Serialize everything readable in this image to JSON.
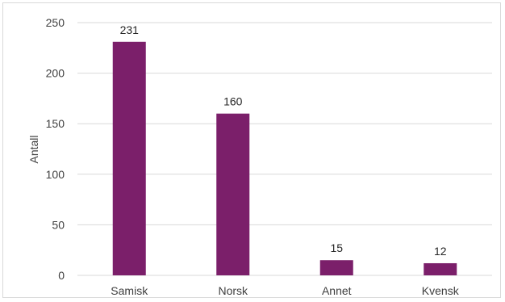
{
  "chart_data": {
    "type": "bar",
    "categories": [
      "Samisk",
      "Norsk",
      "Annet",
      "Kvensk"
    ],
    "values": [
      231,
      160,
      15,
      12
    ],
    "data_labels": [
      "231",
      "160",
      "15",
      "12"
    ],
    "xlabel": "",
    "ylabel": "Antall",
    "ylim": [
      0,
      250
    ],
    "yticks": [
      0,
      50,
      100,
      150,
      200,
      250
    ],
    "ytick_labels": [
      "0",
      "50",
      "100",
      "150",
      "200",
      "250"
    ],
    "grid": true,
    "legend": "none",
    "bar_color": "#7b1f6a",
    "grid_color": "#d9d9d9"
  }
}
